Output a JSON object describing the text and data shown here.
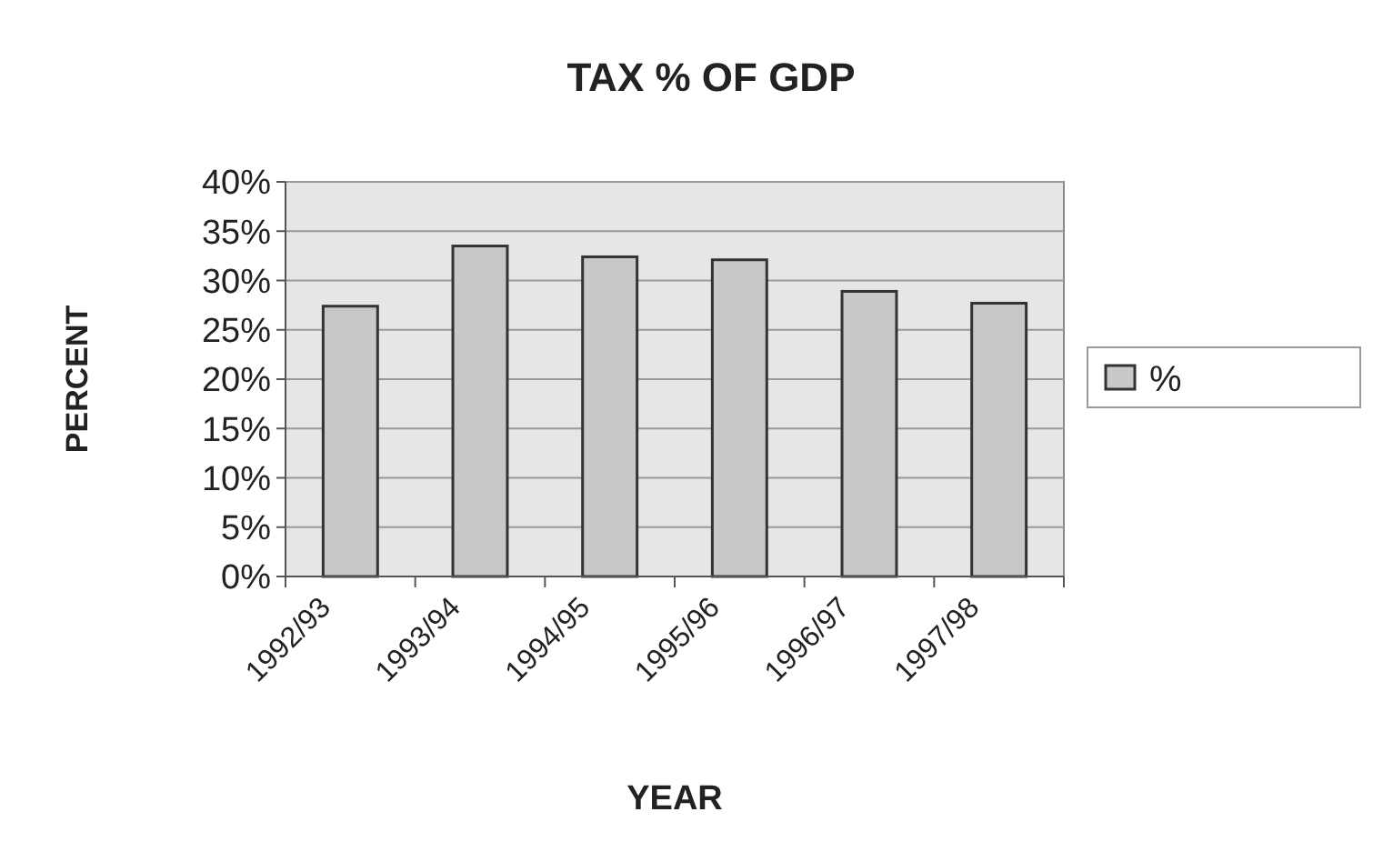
{
  "chart_data": {
    "type": "bar",
    "title": "TAX % OF GDP",
    "xlabel": "YEAR",
    "ylabel": "PERCENT",
    "categories": [
      "1992/93",
      "1993/94",
      "1994/95",
      "1995/96",
      "1996/97",
      "1997/98"
    ],
    "series": [
      {
        "name": "%",
        "color": "#c8c8c8",
        "values": [
          27.4,
          33.5,
          32.4,
          32.1,
          28.9,
          27.7
        ]
      }
    ],
    "ylim": [
      0,
      40
    ],
    "yticks": [
      {
        "value": 0,
        "label": "0%"
      },
      {
        "value": 5,
        "label": "5%"
      },
      {
        "value": 10,
        "label": "10%"
      },
      {
        "value": 15,
        "label": "15%"
      },
      {
        "value": 20,
        "label": "20%"
      },
      {
        "value": 25,
        "label": "25%"
      },
      {
        "value": 30,
        "label": "30%"
      },
      {
        "value": 35,
        "label": "35%"
      },
      {
        "value": 40,
        "label": "40%"
      }
    ],
    "grid": "y",
    "legend": "right"
  }
}
